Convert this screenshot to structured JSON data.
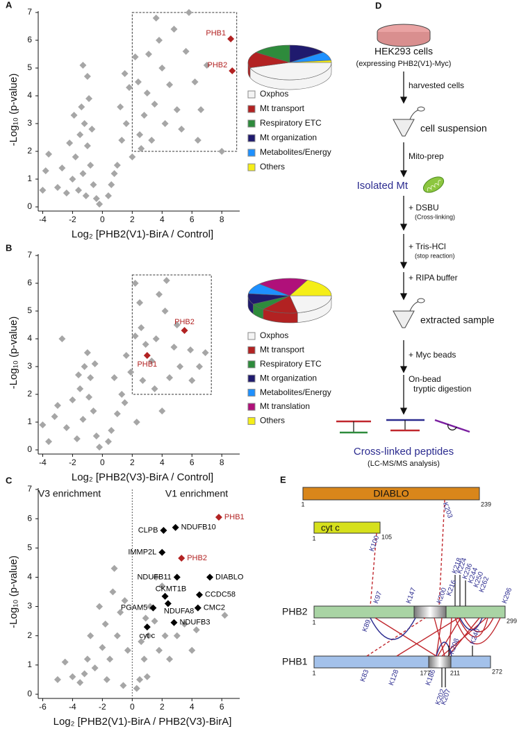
{
  "chart_data": [
    {
      "type": "scatter",
      "panel": "A",
      "y_label": "-Log₁₀ (p-value)",
      "x_label": "Log₂ [PHB2(V1)-BirA / Control]",
      "xlim": [
        -4.3,
        9.2
      ],
      "ylim": [
        0,
        7
      ],
      "xticks": [
        -4,
        -2,
        0,
        2,
        4,
        6,
        8
      ],
      "yticks": [
        0,
        1,
        2,
        3,
        4,
        5,
        6,
        7
      ],
      "series": [
        {
          "color": "#a6a6a6",
          "x": [
            -1.2,
            -1.5,
            -1.0,
            -1.8,
            -0.8,
            -1.3,
            -2.0,
            -0.6,
            -1.6,
            -2.4,
            -0.4,
            -1.1,
            -3.0,
            -2.7,
            -3.8,
            -4.0,
            -3.6,
            -1.3,
            -1.0,
            -1.4,
            -0.9,
            -2.2,
            -0.2,
            -0.7,
            -1.9,
            0.6,
            1.0,
            1.3,
            1.6,
            1.8,
            1.5,
            0.8,
            1.2,
            0.4,
            2.0,
            2.5,
            2.8,
            3.0,
            3.5,
            2.2,
            3.1,
            4.0,
            3.8,
            3.6,
            5.8,
            4.5,
            5.0,
            5.6,
            6.2,
            7.0,
            6.4,
            5.3,
            4.2,
            2.6,
            8.0,
            3.3,
            2.4,
            6.6,
            4.8
          ],
          "y": [
            3.0,
            2.6,
            2.2,
            1.8,
            1.5,
            1.2,
            1.0,
            0.8,
            0.6,
            0.5,
            0.3,
            0.4,
            0.7,
            1.4,
            1.3,
            0.6,
            1.9,
            5.1,
            4.7,
            3.6,
            3.9,
            2.3,
            0.1,
            2.8,
            3.3,
            0.8,
            1.5,
            2.4,
            3.0,
            4.3,
            4.8,
            1.2,
            3.6,
            0.4,
            1.8,
            2.6,
            3.3,
            4.1,
            3.7,
            5.4,
            5.5,
            5.0,
            6.0,
            6.8,
            7.0,
            4.4,
            3.5,
            5.6,
            4.5,
            5.1,
            2.4,
            2.8,
            3.0,
            2.1,
            2.0,
            2.4,
            4.5,
            3.5,
            6.4
          ]
        }
      ],
      "highlighted": [
        {
          "label": "PHB1",
          "x": 8.6,
          "y": 6.05,
          "color": "#b22222"
        },
        {
          "label": "PHB2",
          "x": 8.7,
          "y": 4.9,
          "color": "#b22222"
        }
      ],
      "highlight_region": {
        "xlim": [
          2,
          9
        ],
        "ylim": [
          2,
          7
        ]
      }
    },
    {
      "type": "pie",
      "categories": [
        "Oxphos",
        "Mt transport",
        "Respiratory ETC",
        "Mt organization",
        "Metabolites/Energy",
        "Others"
      ],
      "values": [
        45,
        15,
        15,
        15,
        8,
        2
      ],
      "colors": [
        "#f4f4f4",
        "#b22222",
        "#2e8b3c",
        "#1f1a6e",
        "#1e90ff",
        "#f5ee18"
      ]
    },
    {
      "type": "scatter",
      "panel": "B",
      "y_label": "-Log₁₀ (p-value)",
      "x_label": "Log₂ [PHB2(V3)-BirA / Control]",
      "xlim": [
        -4.3,
        9.2
      ],
      "ylim": [
        0,
        7
      ],
      "xticks": [
        -4,
        -2,
        0,
        2,
        4,
        6,
        8
      ],
      "yticks": [
        0,
        1,
        2,
        3,
        4,
        5,
        6,
        7
      ],
      "series": [
        {
          "color": "#a6a6a6",
          "x": [
            -1.0,
            -1.2,
            -0.8,
            -1.5,
            -2.0,
            -0.6,
            -1.3,
            -2.4,
            -0.4,
            -1.7,
            -3.0,
            -3.2,
            -2.7,
            -4.0,
            -3.6,
            -0.2,
            -0.9,
            -1.6,
            -0.5,
            0.6,
            1.0,
            1.3,
            0.8,
            1.6,
            1.9,
            2.2,
            2.6,
            2.9,
            3.3,
            3.6,
            4.2,
            4.3,
            3.8,
            2.5,
            2.2,
            4.8,
            5.2,
            5.9,
            6.5,
            6.9,
            6.0,
            2.7,
            3.5,
            4.5,
            5.0,
            1.5,
            0.4,
            2.3,
            4.0
          ],
          "y": [
            3.5,
            3.0,
            2.6,
            2.2,
            1.8,
            1.4,
            1.1,
            0.8,
            0.5,
            0.4,
            1.6,
            1.2,
            4.0,
            0.9,
            0.3,
            0.1,
            1.9,
            2.7,
            3.1,
            0.7,
            1.3,
            2.0,
            2.6,
            3.4,
            2.8,
            4.1,
            4.4,
            3.8,
            3.2,
            4.0,
            5.0,
            6.1,
            5.6,
            5.3,
            6.0,
            3.7,
            3.0,
            3.6,
            3.0,
            3.5,
            2.5,
            2.5,
            2.2,
            2.6,
            4.5,
            1.7,
            0.3,
            1.0,
            1.4
          ]
        }
      ],
      "highlighted": [
        {
          "label": "PHB2",
          "x": 5.5,
          "y": 4.3,
          "color": "#b22222"
        },
        {
          "label": "PHB1",
          "x": 3.0,
          "y": 3.4,
          "color": "#b22222"
        }
      ],
      "highlight_region": {
        "xlim": [
          2,
          7.3
        ],
        "ylim": [
          2,
          6.3
        ]
      }
    },
    {
      "type": "pie",
      "categories": [
        "Oxphos",
        "Mt transport",
        "Respiratory ETC",
        "Mt organization",
        "Metabolites/Energy",
        "Mt translation",
        "Others"
      ],
      "values": [
        22,
        14,
        6,
        10,
        10,
        20,
        18
      ],
      "colors": [
        "#f4f4f4",
        "#b22222",
        "#2e8b3c",
        "#1f1a6e",
        "#1e90ff",
        "#b0107a",
        "#f5ee18"
      ]
    },
    {
      "type": "scatter",
      "panel": "C",
      "y_label": "-Log₁₀ (p-value)",
      "x_label": "Log₂ [PHB2(V1)-BirA / PHB2(V3)-BirA]",
      "xlim": [
        -6.3,
        7.2
      ],
      "ylim": [
        0,
        7
      ],
      "xticks": [
        -6,
        -4,
        -2,
        0,
        2,
        4,
        6
      ],
      "yticks": [
        0,
        1,
        2,
        3,
        4,
        5,
        6,
        7
      ],
      "annotations": [
        "V3 enrichment",
        "V1 enrichment"
      ],
      "vline": 0,
      "series": [
        {
          "color": "#a6a6a6",
          "x": [
            -1.5,
            -1.0,
            -0.8,
            -1.8,
            -1.3,
            -0.5,
            -2.0,
            -2.5,
            -3.2,
            -4.0,
            -5.0,
            -4.5,
            -3.0,
            -2.2,
            -1.2,
            -0.6,
            -1.7,
            -0.3,
            -2.8,
            -3.5,
            0.5,
            0.8,
            1.1,
            0.6,
            1.5,
            1.8,
            2.2,
            1.2,
            2.5,
            3.0,
            3.5,
            4.0,
            0.3,
            1.0,
            2.0,
            1.6,
            6.2,
            4.3,
            0.9
          ],
          "y": [
            1.2,
            2.0,
            2.8,
            2.4,
            3.5,
            3.2,
            1.6,
            0.9,
            0.7,
            0.6,
            0.5,
            1.1,
            1.2,
            3.0,
            4.3,
            0.3,
            0.5,
            1.5,
            2.0,
            0.4,
            0.5,
            1.2,
            2.0,
            1.8,
            2.5,
            1.5,
            2.0,
            3.0,
            1.2,
            2.0,
            2.4,
            1.5,
            0.2,
            0.6,
            3.7,
            4.0,
            2.7,
            2.2,
            2.6
          ]
        }
      ],
      "highlighted": [
        {
          "label": "PHB1",
          "x": 5.8,
          "y": 6.05,
          "color": "#b22222"
        },
        {
          "label": "NDUFB10",
          "x": 2.9,
          "y": 5.7,
          "color": "#000000"
        },
        {
          "label": "CLPB",
          "x": 2.1,
          "y": 5.6,
          "color": "#000000"
        },
        {
          "label": "IMMP2L",
          "x": 2.0,
          "y": 4.85,
          "color": "#000000"
        },
        {
          "label": "PHB2",
          "x": 3.3,
          "y": 4.65,
          "color": "#b22222"
        },
        {
          "label": "NDUFB11",
          "x": 3.0,
          "y": 4.0,
          "color": "#000000"
        },
        {
          "label": "DIABLO",
          "x": 5.2,
          "y": 4.0,
          "color": "#000000"
        },
        {
          "label": "CKMT1B",
          "x": 2.2,
          "y": 3.35,
          "color": "#000000"
        },
        {
          "label": "CCDC58",
          "x": 4.5,
          "y": 3.4,
          "color": "#000000"
        },
        {
          "label": "PGAM5",
          "x": 1.4,
          "y": 2.95,
          "color": "#000000"
        },
        {
          "label": "NDUFA8",
          "x": 2.4,
          "y": 3.1,
          "color": "#000000"
        },
        {
          "label": "CMC2",
          "x": 4.4,
          "y": 2.95,
          "color": "#000000"
        },
        {
          "label": "NDUFB3",
          "x": 2.8,
          "y": 2.45,
          "color": "#000000"
        },
        {
          "label": "cyt c",
          "x": 1.0,
          "y": 2.3,
          "color": "#000000"
        }
      ]
    }
  ],
  "diagram_d": {
    "label": "D",
    "cells": "HEK293 cells",
    "cells_note": "(expressing PHB2(V1)-Myc)",
    "steps": [
      "harvested cells",
      "Mito-prep",
      "+ DSBU",
      "+ Tris-HCl",
      "+ RIPA buffer",
      "+ Myc beads"
    ],
    "notes": [
      "(Cross-linking)",
      "(stop reaction)"
    ],
    "digestion": [
      "On-bead",
      "tryptic digestion"
    ],
    "products": [
      "cell suspension",
      "Isolated Mt",
      "extracted sample"
    ],
    "result": "Cross-linked peptides",
    "result_note": "(LC-MS/MS analysis)"
  },
  "diagram_e": {
    "label": "E",
    "proteins": [
      {
        "name": "DIABLO",
        "start": 1,
        "end": 239,
        "sites": [
          "K203"
        ]
      },
      {
        "name": "cyt c",
        "start": 1,
        "end": 105,
        "sites": [
          "K100"
        ]
      },
      {
        "name": "PHB2",
        "start": 1,
        "end": 299,
        "sites": [
          "K97",
          "K147",
          "K200",
          "K216",
          "K218",
          "K224",
          "K236",
          "K244",
          "K250",
          "K262",
          "K296",
          "K89"
        ]
      },
      {
        "name": "PHB1",
        "start": 1,
        "end": 272,
        "region": [
          177,
          211
        ],
        "sites": [
          "K83",
          "K128",
          "K186",
          "K202",
          "K207",
          "K208",
          "K240"
        ]
      }
    ]
  }
}
